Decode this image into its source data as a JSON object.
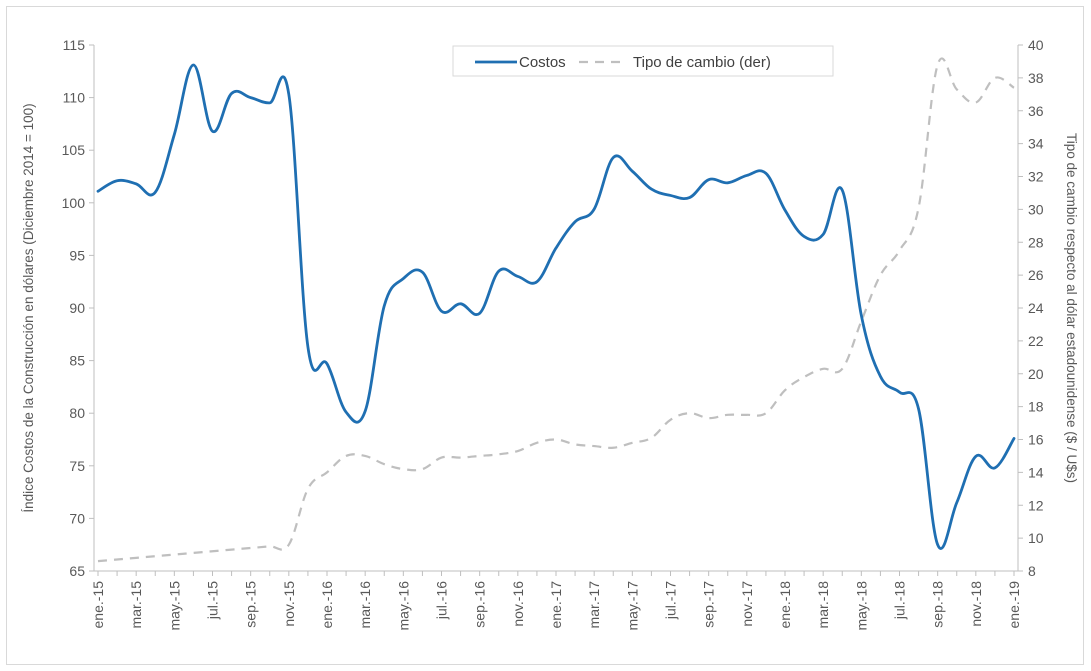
{
  "chart_data": {
    "type": "line",
    "title": "",
    "xlabel": "",
    "ylabel": "Índice Costos de la Construcción en dólares (Diciembre 2014 = 100)",
    "y2label": "Tipo de cambio respecto al dólar estadounidense ($ / U$s)",
    "ylim": [
      65,
      115
    ],
    "y2lim": [
      8,
      40
    ],
    "yticks": [
      "65",
      "70",
      "75",
      "80",
      "85",
      "90",
      "95",
      "100",
      "105",
      "110",
      "115"
    ],
    "y2ticks": [
      "8",
      "10",
      "12",
      "14",
      "16",
      "18",
      "20",
      "22",
      "24",
      "26",
      "28",
      "30",
      "32",
      "34",
      "36",
      "38",
      "40"
    ],
    "x": [
      "ene.-15",
      "feb.-15",
      "mar.-15",
      "abr.-15",
      "may.-15",
      "jun.-15",
      "jul.-15",
      "ago.-15",
      "sep.-15",
      "oct.-15",
      "nov.-15",
      "dic.-15",
      "ene.-16",
      "feb.-16",
      "mar.-16",
      "abr.-16",
      "may.-16",
      "jun.-16",
      "jul.-16",
      "ago.-16",
      "sep.-16",
      "oct.-16",
      "nov.-16",
      "dic.-16",
      "ene.-17",
      "feb.-17",
      "mar.-17",
      "abr.-17",
      "may.-17",
      "jun.-17",
      "jul.-17",
      "ago.-17",
      "sep.-17",
      "oct.-17",
      "nov.-17",
      "dic.-17",
      "ene.-18",
      "feb.-18",
      "mar.-18",
      "abr.-18",
      "may.-18",
      "jun.-18",
      "jul.-18",
      "ago.-18",
      "sep.-18",
      "oct.-18",
      "nov.-18",
      "dic.-18",
      "ene.-19"
    ],
    "xtick_labels": [
      "ene.-15",
      "mar.-15",
      "may.-15",
      "jul.-15",
      "sep.-15",
      "nov.-15",
      "ene.-16",
      "mar.-16",
      "may.-16",
      "jul.-16",
      "sep.-16",
      "nov.-16",
      "ene.-17",
      "mar.-17",
      "may.-17",
      "jul.-17",
      "sep.-17",
      "nov.-17",
      "ene.-18",
      "mar.-18",
      "may.-18",
      "jul.-18",
      "sep.-18",
      "nov.-18",
      "ene.-19"
    ],
    "series": [
      {
        "name": "Costos",
        "axis": "left",
        "color": "#1f6fb2",
        "style": "solid",
        "values": [
          101.1,
          102.1,
          101.8,
          101.0,
          106.5,
          113.1,
          106.8,
          110.4,
          110.0,
          109.5,
          110.3,
          86.3,
          84.7,
          80.1,
          80.2,
          90.2,
          92.8,
          93.4,
          89.7,
          90.4,
          89.5,
          93.5,
          93.0,
          92.5,
          95.7,
          98.2,
          99.4,
          104.3,
          103.0,
          101.3,
          100.7,
          100.5,
          102.2,
          101.9,
          102.6,
          102.8,
          99.3,
          96.8,
          97.0,
          101.2,
          89.3,
          83.5,
          82.0,
          80.4,
          67.5,
          71.5,
          75.9,
          74.8,
          77.6
        ]
      },
      {
        "name": "Tipo de cambio (der)",
        "axis": "right",
        "color": "#bfbfbf",
        "style": "dashed",
        "values": [
          8.6,
          8.7,
          8.8,
          8.9,
          9.0,
          9.1,
          9.2,
          9.3,
          9.4,
          9.5,
          9.6,
          13.0,
          14.0,
          15.0,
          15.0,
          14.5,
          14.2,
          14.2,
          14.9,
          14.9,
          15.0,
          15.1,
          15.3,
          15.8,
          16.0,
          15.7,
          15.6,
          15.5,
          15.8,
          16.1,
          17.2,
          17.6,
          17.3,
          17.5,
          17.5,
          17.6,
          19.0,
          19.8,
          20.3,
          20.3,
          23.2,
          26.0,
          27.5,
          30.1,
          38.8,
          37.3,
          36.5,
          38.0,
          37.4
        ]
      }
    ],
    "legend": {
      "position": "top-center",
      "entries": [
        "Costos",
        "Tipo de cambio (der)"
      ]
    },
    "grid": false
  }
}
